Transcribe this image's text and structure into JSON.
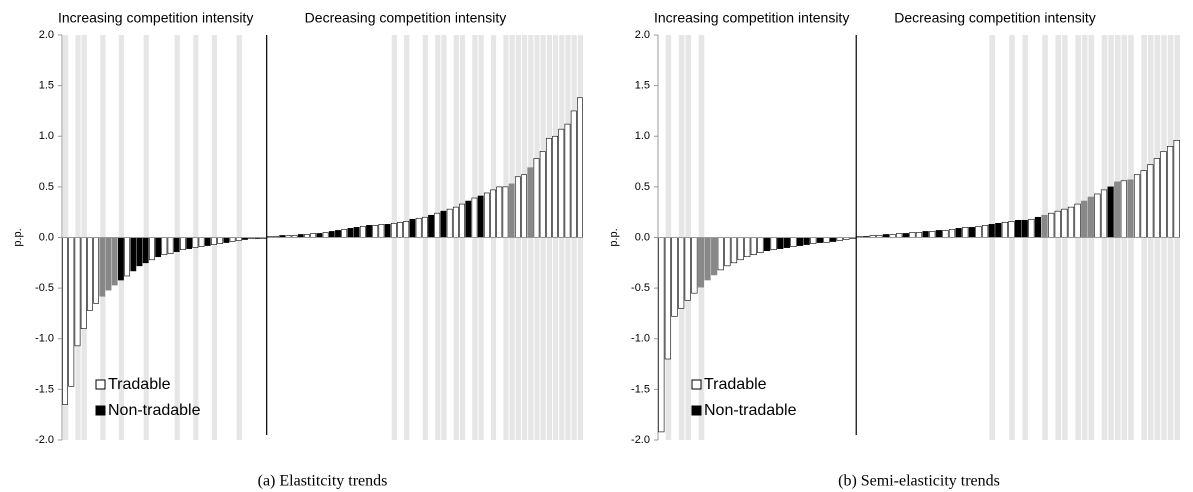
{
  "chart_data": [
    {
      "type": "bar",
      "caption": "(a)  Elastitcity trends",
      "annotations": [
        "Increasing competition intensity",
        "Decreasing competition intensity"
      ],
      "ylabel": "p.p.",
      "ylim": [
        -2,
        2
      ],
      "yticks": [
        {
          "value": -2,
          "label": "-2.0"
        },
        {
          "value": -1.5,
          "label": "-1.5"
        },
        {
          "value": -1,
          "label": "-1.0"
        },
        {
          "value": -0.5,
          "label": "-0.5"
        },
        {
          "value": 0,
          "label": "0.0"
        },
        {
          "value": 0.5,
          "label": "0.5"
        },
        {
          "value": 1,
          "label": "1.0"
        },
        {
          "value": 1.5,
          "label": "1.5"
        },
        {
          "value": 2,
          "label": "2.0"
        }
      ],
      "legend": [
        {
          "name": "Tradable",
          "color": "#ffffff"
        },
        {
          "name": "Non-tradable",
          "color": "#000000"
        }
      ],
      "values": [
        -1.65,
        -1.47,
        -1.07,
        -0.9,
        -0.72,
        -0.65,
        -0.58,
        -0.52,
        -0.47,
        -0.42,
        -0.38,
        -0.33,
        -0.28,
        -0.25,
        -0.22,
        -0.19,
        -0.17,
        -0.16,
        -0.14,
        -0.12,
        -0.11,
        -0.1,
        -0.09,
        -0.08,
        -0.07,
        -0.06,
        -0.05,
        -0.04,
        -0.03,
        -0.02,
        -0.01,
        -0.01,
        -0.01,
        0.01,
        0.01,
        0.02,
        0.02,
        0.02,
        0.03,
        0.03,
        0.04,
        0.04,
        0.05,
        0.06,
        0.07,
        0.08,
        0.09,
        0.1,
        0.11,
        0.12,
        0.12,
        0.13,
        0.13,
        0.14,
        0.15,
        0.16,
        0.18,
        0.19,
        0.2,
        0.22,
        0.24,
        0.26,
        0.28,
        0.3,
        0.33,
        0.36,
        0.39,
        0.41,
        0.44,
        0.47,
        0.5,
        0.5,
        0.53,
        0.6,
        0.62,
        0.69,
        0.78,
        0.85,
        0.98,
        1.0,
        1.07,
        1.12,
        1.25,
        1.38
      ],
      "colors": [
        "#fff",
        "#fff",
        "#fff",
        "#fff",
        "#fff",
        "#fff",
        "#888",
        "#888",
        "#888",
        "#000",
        "#fff",
        "#000",
        "#000",
        "#000",
        "#fff",
        "#000",
        "#fff",
        "#fff",
        "#000",
        "#fff",
        "#000",
        "#fff",
        "#fff",
        "#000",
        "#fff",
        "#fff",
        "#000",
        "#fff",
        "#fff",
        "#000",
        "#fff",
        "#000",
        "#fff",
        "#fff",
        "#fff",
        "#000",
        "#fff",
        "#fff",
        "#000",
        "#fff",
        "#fff",
        "#000",
        "#fff",
        "#000",
        "#000",
        "#fff",
        "#000",
        "#000",
        "#fff",
        "#000",
        "#fff",
        "#fff",
        "#000",
        "#fff",
        "#fff",
        "#fff",
        "#000",
        "#fff",
        "#fff",
        "#000",
        "#fff",
        "#000",
        "#fff",
        "#fff",
        "#fff",
        "#000",
        "#fff",
        "#000",
        "#fff",
        "#fff",
        "#fff",
        "#fff",
        "#888",
        "#fff",
        "#fff",
        "#888",
        "#fff",
        "#fff",
        "#fff",
        "#fff",
        "#fff",
        "#fff",
        "#fff",
        "#fff",
        "#fff"
      ],
      "shaded": [
        1,
        0,
        1,
        1,
        0,
        0,
        1,
        0,
        0,
        1,
        0,
        0,
        0,
        1,
        0,
        0,
        0,
        0,
        1,
        0,
        0,
        1,
        0,
        0,
        1,
        0,
        0,
        0,
        1,
        0,
        0,
        0,
        0,
        0,
        0,
        0,
        0,
        0,
        0,
        0,
        0,
        0,
        0,
        0,
        0,
        0,
        0,
        0,
        0,
        0,
        0,
        0,
        0,
        1,
        0,
        1,
        0,
        0,
        1,
        0,
        1,
        1,
        0,
        1,
        1,
        0,
        1,
        1,
        0,
        1,
        0,
        1,
        1,
        1,
        1,
        1,
        1,
        1,
        1,
        1,
        1,
        1,
        1,
        1
      ]
    },
    {
      "type": "bar",
      "caption": "(b)  Semi-elasticity trends",
      "annotations": [
        "Increasing competition intensity",
        "Decreasing competition intensity"
      ],
      "ylabel": "p.p.",
      "ylim": [
        -2,
        2
      ],
      "yticks": [
        {
          "value": -2,
          "label": "-2.0"
        },
        {
          "value": -1.5,
          "label": "-1.5"
        },
        {
          "value": -1,
          "label": "-1.0"
        },
        {
          "value": -0.5,
          "label": "-0.5"
        },
        {
          "value": 0,
          "label": "0.0"
        },
        {
          "value": 0.5,
          "label": "0.5"
        },
        {
          "value": 1,
          "label": "1.0"
        },
        {
          "value": 1.5,
          "label": "1.5"
        },
        {
          "value": 2,
          "label": "2.0"
        }
      ],
      "legend": [
        {
          "name": "Tradable",
          "color": "#ffffff"
        },
        {
          "name": "Non-tradable",
          "color": "#000000"
        }
      ],
      "values": [
        -1.92,
        -1.2,
        -0.78,
        -0.7,
        -0.62,
        -0.55,
        -0.49,
        -0.42,
        -0.37,
        -0.32,
        -0.28,
        -0.25,
        -0.22,
        -0.19,
        -0.17,
        -0.15,
        -0.13,
        -0.12,
        -0.11,
        -0.1,
        -0.09,
        -0.08,
        -0.07,
        -0.06,
        -0.05,
        -0.05,
        -0.04,
        -0.03,
        -0.02,
        -0.01,
        0.01,
        0.01,
        0.02,
        0.02,
        0.03,
        0.03,
        0.04,
        0.04,
        0.05,
        0.05,
        0.06,
        0.06,
        0.07,
        0.07,
        0.08,
        0.09,
        0.1,
        0.1,
        0.11,
        0.12,
        0.13,
        0.14,
        0.15,
        0.16,
        0.17,
        0.17,
        0.18,
        0.2,
        0.22,
        0.24,
        0.26,
        0.28,
        0.3,
        0.33,
        0.36,
        0.4,
        0.43,
        0.47,
        0.5,
        0.55,
        0.56,
        0.57,
        0.62,
        0.66,
        0.72,
        0.78,
        0.85,
        0.9,
        0.96
      ],
      "colors": [
        "#fff",
        "#fff",
        "#fff",
        "#fff",
        "#fff",
        "#fff",
        "#888",
        "#888",
        "#888",
        "#fff",
        "#fff",
        "#fff",
        "#fff",
        "#fff",
        "#fff",
        "#fff",
        "#000",
        "#fff",
        "#000",
        "#000",
        "#fff",
        "#000",
        "#000",
        "#fff",
        "#000",
        "#fff",
        "#000",
        "#fff",
        "#fff",
        "#fff",
        "#fff",
        "#000",
        "#fff",
        "#fff",
        "#000",
        "#fff",
        "#fff",
        "#000",
        "#fff",
        "#fff",
        "#000",
        "#fff",
        "#000",
        "#fff",
        "#fff",
        "#000",
        "#fff",
        "#000",
        "#fff",
        "#fff",
        "#000",
        "#000",
        "#fff",
        "#fff",
        "#000",
        "#000",
        "#fff",
        "#000",
        "#888",
        "#fff",
        "#fff",
        "#fff",
        "#fff",
        "#fff",
        "#888",
        "#888",
        "#fff",
        "#fff",
        "#000",
        "#888",
        "#fff",
        "#888",
        "#fff",
        "#fff",
        "#fff",
        "#fff",
        "#fff",
        "#fff",
        "#fff"
      ],
      "shaded": [
        0,
        1,
        0,
        1,
        1,
        0,
        1,
        0,
        0,
        0,
        0,
        0,
        0,
        0,
        0,
        0,
        0,
        0,
        0,
        0,
        0,
        0,
        0,
        0,
        0,
        0,
        0,
        0,
        0,
        0,
        0,
        0,
        0,
        0,
        0,
        0,
        0,
        0,
        0,
        0,
        0,
        0,
        0,
        0,
        0,
        0,
        0,
        0,
        0,
        0,
        1,
        0,
        0,
        1,
        0,
        1,
        0,
        0,
        1,
        0,
        1,
        1,
        0,
        1,
        1,
        1,
        0,
        1,
        1,
        1,
        1,
        1,
        0,
        1,
        1,
        1,
        1,
        1,
        1
      ]
    }
  ]
}
